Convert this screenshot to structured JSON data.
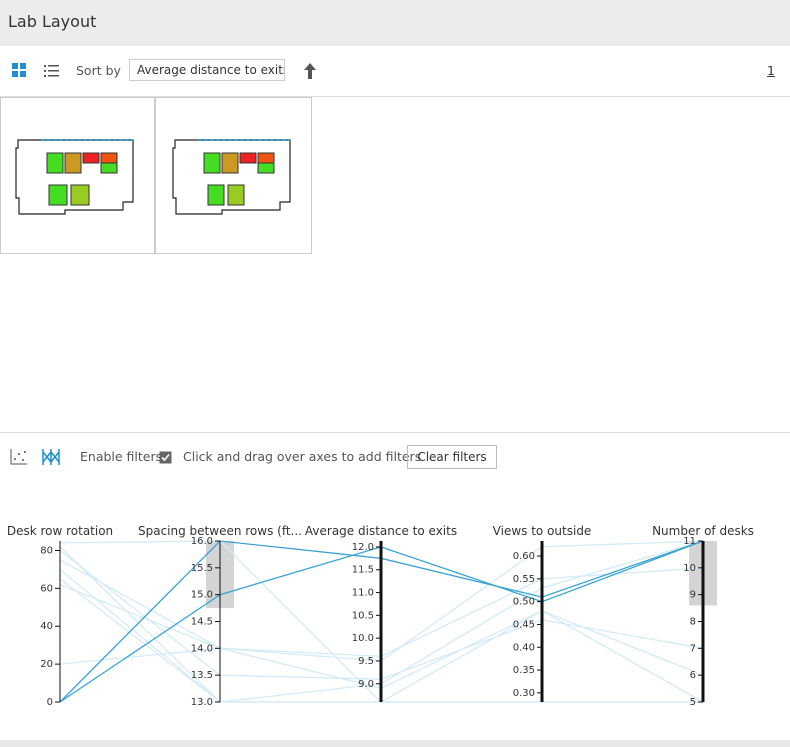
{
  "header": {
    "title": "Lab Layout"
  },
  "toolbar": {
    "sort_label": "Sort by",
    "sort_value": "Average distance to exits",
    "page": "1"
  },
  "filters": {
    "enable_label": "Enable filters",
    "hint": "Click and drag over axes to add filters",
    "clear_button": "Clear filters"
  },
  "chart_data": {
    "type": "parallel",
    "axes": [
      {
        "label": "Desk row rotation",
        "lim": [
          0,
          85
        ],
        "ticks": [
          0,
          20,
          40,
          60,
          80
        ]
      },
      {
        "label": "Spacing between rows (ft...",
        "lim": [
          13,
          16
        ],
        "ticks": [
          {
            "value": 13,
            "label": "13.0"
          },
          13.5,
          {
            "value": 14,
            "label": "14.0"
          },
          14.5,
          {
            "value": 15,
            "label": "15.0"
          },
          15.5,
          {
            "value": 16,
            "label": "16.0"
          }
        ],
        "filter": [
          14.75,
          16
        ]
      },
      {
        "label": "Average distance to exits",
        "lim": [
          8.6,
          12.13
        ],
        "ticks": [
          {
            "value": 9,
            "label": "9.0"
          },
          9.5,
          {
            "value": 10,
            "label": "10.0"
          },
          10.5,
          {
            "value": 11,
            "label": "11.0"
          },
          11.5,
          {
            "value": 12,
            "label": "12.0"
          }
        ]
      },
      {
        "label": "Views to outside",
        "lim": [
          0.28,
          0.633
        ],
        "ticks": [
          {
            "value": 0.3,
            "label": "0.30"
          },
          0.35,
          {
            "value": 0.4,
            "label": "0.40"
          },
          0.45,
          {
            "value": 0.5,
            "label": "0.50"
          },
          0.55,
          {
            "value": 0.6,
            "label": "0.60"
          }
        ]
      },
      {
        "label": "Number of desks",
        "lim": [
          5,
          11
        ],
        "ticks": [
          5,
          6,
          7,
          8,
          9,
          10,
          11
        ],
        "filter": [
          8.6,
          11
        ]
      }
    ],
    "series": [
      {
        "color": "#d3ebf6",
        "values": [
          84,
          16,
          8.6,
          0.28,
          5
        ]
      },
      {
        "color": "#d3ebf6",
        "values": [
          75,
          14,
          9.5,
          0.62,
          11
        ]
      },
      {
        "color": "#d3ebf6",
        "values": [
          70,
          13,
          8.6,
          0.28,
          5
        ]
      },
      {
        "color": "#d3ebf6",
        "values": [
          62,
          14,
          9.6,
          0.55,
          10
        ]
      },
      {
        "color": "#d3ebf6",
        "values": [
          20,
          14,
          8.9,
          0.48,
          6
        ]
      },
      {
        "color": "#d3ebf6",
        "values": [
          80,
          13.5,
          9.1,
          0.46,
          7
        ]
      },
      {
        "color": "#d3ebf6",
        "values": [
          65,
          13,
          9,
          0.53,
          11
        ]
      },
      {
        "color": "#d3ebf6",
        "values": [
          82,
          13,
          8.6,
          0.48,
          5
        ]
      },
      {
        "color": "#3aa3d3",
        "values": [
          0,
          16,
          11.75,
          0.51,
          11
        ]
      },
      {
        "color": "#3aa3d3",
        "values": [
          0,
          15,
          12,
          0.5,
          11
        ]
      }
    ]
  }
}
